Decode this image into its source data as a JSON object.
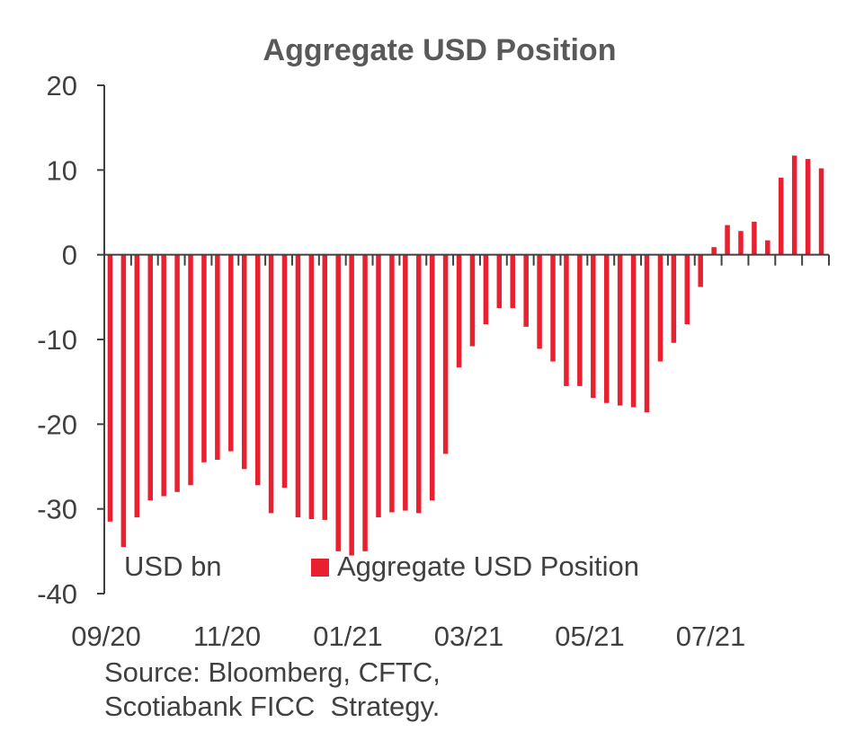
{
  "chart_data": {
    "type": "bar",
    "title": "Aggregate USD Position",
    "unit_label": "USD bn",
    "legend": [
      {
        "name": "Aggregate USD Position",
        "color": "#e8202f"
      }
    ],
    "legend_position": "bottom-inside",
    "ylim": [
      -40,
      20
    ],
    "yticks": [
      20,
      10,
      0,
      -10,
      -20,
      -30,
      -40
    ],
    "xtick_labels": [
      "09/20",
      "11/20",
      "01/21",
      "03/21",
      "05/21",
      "07/21"
    ],
    "grid": false,
    "series": [
      {
        "name": "Aggregate USD Position",
        "color": "#e8202f",
        "values": [
          -31.5,
          -34.5,
          -31,
          -29,
          -28.5,
          -28,
          -27.2,
          -24.5,
          -24.2,
          -23.2,
          -25.3,
          -27.2,
          -30.5,
          -27.5,
          -31,
          -31.2,
          -31.3,
          -35,
          -35.5,
          -35,
          -31,
          -30.4,
          -30.2,
          -30.5,
          -29,
          -23.5,
          -13.3,
          -10.8,
          -8.2,
          -6.3,
          -6.3,
          -8.5,
          -11.1,
          -12.6,
          -15.5,
          -15.5,
          -16.9,
          -17.5,
          -17.8,
          -18,
          -18.6,
          -12.6,
          -10.4,
          -8.2,
          -3.8,
          0.9,
          3.5,
          2.8,
          3.9,
          1.7,
          9.1,
          11.7,
          11.3,
          10.2
        ]
      }
    ],
    "colors": {
      "bar": "#e8202f",
      "axis": "#404040",
      "title": "#595959",
      "text": "#404040"
    }
  },
  "source": {
    "line1": "Source: Bloomberg, CFTC,",
    "line2": "Scotiabank FICC  Strategy."
  }
}
